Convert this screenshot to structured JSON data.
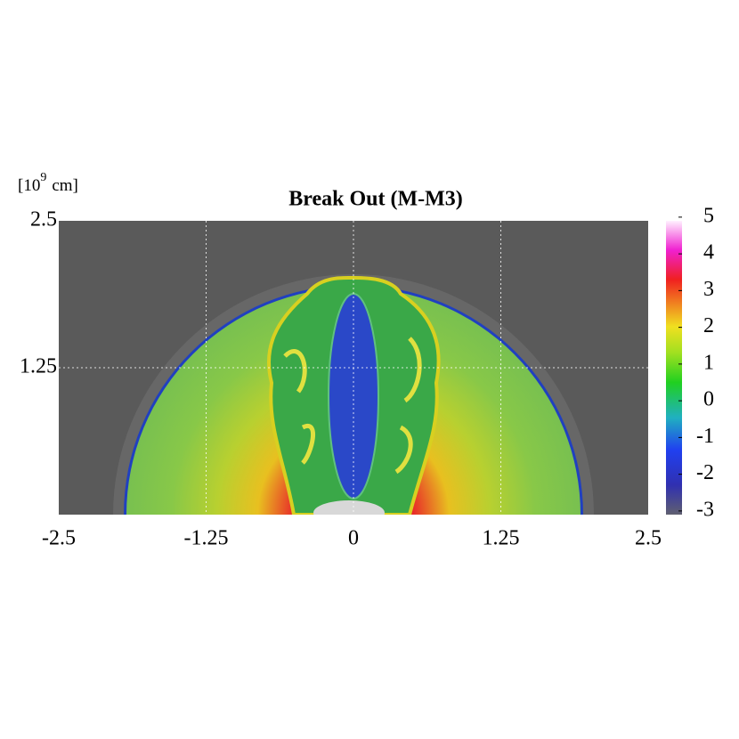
{
  "chart_data": {
    "type": "image",
    "title": "Break Out (M-M3)",
    "y_unit": {
      "base": "[10",
      "exponent": "9",
      "unit": "cm]"
    },
    "xlim": [
      -2.5,
      2.5
    ],
    "xticks": [
      -2.5,
      -1.25,
      0,
      1.25,
      2.5
    ],
    "ylim": [
      0,
      2.5
    ],
    "yticks": [
      1.25,
      2.5
    ],
    "grid": true,
    "colorbar": {
      "lim": [
        -3.1,
        4.9
      ],
      "ticks": [
        5,
        4,
        3,
        2,
        1,
        0,
        -1,
        -2,
        -3
      ]
    }
  }
}
